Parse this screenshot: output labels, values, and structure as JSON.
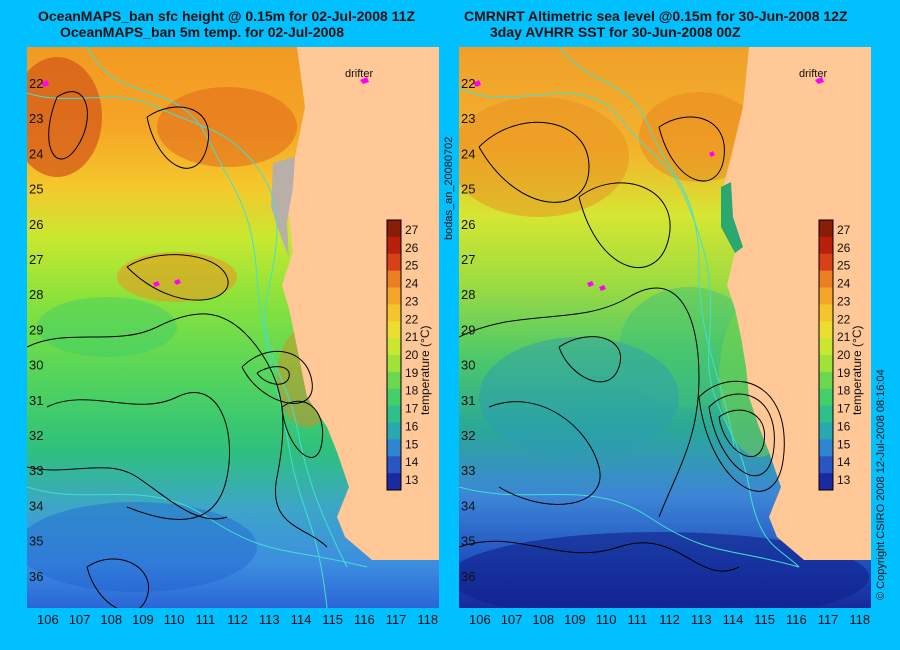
{
  "left_panel": {
    "title_line1": "OceanMAPS_ban sfc height @ 0.15m for 02-Jul-2008 11Z",
    "title_line2": "OceanMAPS_ban 5m temp. for 02-Jul-2008",
    "drifter_label": "drifter"
  },
  "right_panel": {
    "title_line1": "CMRNRT Altimetric sea level  @0.15m  for 30-Jun-2008 12Z",
    "title_line2": "3day AVHRR SST for 30-Jun-2008 00Z",
    "drifter_label": "drifter"
  },
  "axes": {
    "lat_ticks": [
      "22",
      "23",
      "24",
      "25",
      "26",
      "27",
      "28",
      "29",
      "30",
      "31",
      "32",
      "33",
      "34",
      "35",
      "36"
    ],
    "lon_ticks": [
      "106",
      "107",
      "108",
      "109",
      "110",
      "111",
      "112",
      "113",
      "114",
      "115",
      "116",
      "117",
      "118"
    ]
  },
  "colorbar": {
    "ticks": [
      "27",
      "26",
      "25",
      "24",
      "23",
      "22",
      "21",
      "20",
      "19",
      "18",
      "17",
      "16",
      "15",
      "14",
      "13"
    ],
    "label": "temperature (°C)"
  },
  "side_text": {
    "left": "bodas_an_20080702",
    "right": "© Copyright CSIRO 2008   12-Jul-2008 08:16:04"
  },
  "colors": {
    "background": "#00C0FF",
    "land": "#FFC896",
    "contour": "#000000",
    "bathymetry": "#40E0D0",
    "drifter": "#FF00FF"
  }
}
